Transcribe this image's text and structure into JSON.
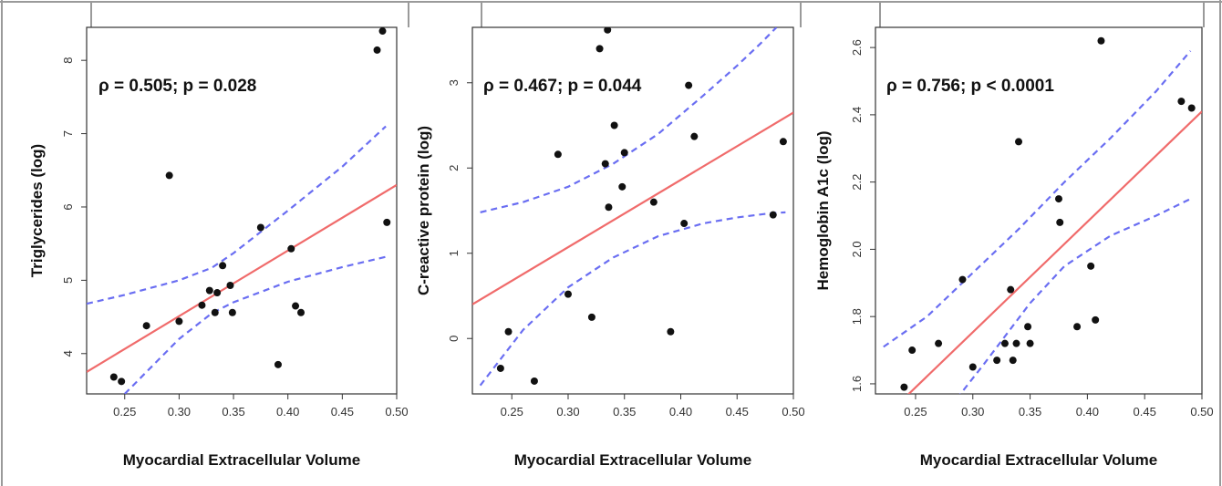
{
  "colors": {
    "fit_line": "#f06b6b",
    "confidence_band": "#6a6ef2",
    "points": "#111111",
    "frame": "#333333",
    "border": "#9a9a9a"
  },
  "chart_data": [
    {
      "type": "scatter",
      "xlabel": "Myocardial Extracellular Volume",
      "ylabel": "Triglycerides (log)",
      "annotation": "ρ = 0.505; p = 0.028",
      "xlim": [
        0.215,
        0.5
      ],
      "ylim": [
        3.45,
        8.45
      ],
      "xticks": [
        0.25,
        0.3,
        0.35,
        0.4,
        0.45,
        0.5
      ],
      "xtick_labels": [
        "0.25",
        "0.30",
        "0.35",
        "0.40",
        "0.45",
        "0.50"
      ],
      "yticks": [
        4,
        5,
        6,
        7,
        8
      ],
      "ytick_labels": [
        "4",
        "5",
        "6",
        "7",
        "8"
      ],
      "points": [
        {
          "x": 0.24,
          "y": 3.68
        },
        {
          "x": 0.247,
          "y": 3.62
        },
        {
          "x": 0.27,
          "y": 4.38
        },
        {
          "x": 0.291,
          "y": 6.43
        },
        {
          "x": 0.3,
          "y": 4.44
        },
        {
          "x": 0.321,
          "y": 4.66
        },
        {
          "x": 0.328,
          "y": 4.86
        },
        {
          "x": 0.333,
          "y": 4.56
        },
        {
          "x": 0.335,
          "y": 4.83
        },
        {
          "x": 0.34,
          "y": 5.2
        },
        {
          "x": 0.347,
          "y": 4.93
        },
        {
          "x": 0.349,
          "y": 4.56
        },
        {
          "x": 0.375,
          "y": 5.72
        },
        {
          "x": 0.391,
          "y": 3.85
        },
        {
          "x": 0.403,
          "y": 5.43
        },
        {
          "x": 0.407,
          "y": 4.65
        },
        {
          "x": 0.412,
          "y": 4.56
        },
        {
          "x": 0.482,
          "y": 8.14
        },
        {
          "x": 0.487,
          "y": 8.4
        },
        {
          "x": 0.491,
          "y": 5.79
        }
      ],
      "fit": {
        "x": [
          0.215,
          0.5
        ],
        "y": [
          3.75,
          6.3
        ]
      },
      "ci_upper": {
        "x": [
          0.215,
          0.25,
          0.3,
          0.33,
          0.35,
          0.4,
          0.45,
          0.49
        ],
        "y": [
          4.68,
          4.8,
          5.0,
          5.17,
          5.37,
          5.95,
          6.55,
          7.1
        ]
      },
      "ci_lower": {
        "x": [
          0.25,
          0.3,
          0.33,
          0.35,
          0.4,
          0.45,
          0.49
        ],
        "y": [
          3.45,
          4.2,
          4.55,
          4.7,
          4.98,
          5.18,
          5.32
        ]
      }
    },
    {
      "type": "scatter",
      "xlabel": "Myocardial Extracellular Volume",
      "ylabel": "C-reactive protein (log)",
      "annotation": "ρ = 0.467; p = 0.044",
      "xlim": [
        0.215,
        0.5
      ],
      "ylim": [
        -0.65,
        3.65
      ],
      "xticks": [
        0.25,
        0.3,
        0.35,
        0.4,
        0.45,
        0.5
      ],
      "xtick_labels": [
        "0.25",
        "0.30",
        "0.35",
        "0.40",
        "0.45",
        "0.50"
      ],
      "yticks": [
        0,
        1,
        2,
        3
      ],
      "ytick_labels": [
        "0",
        "1",
        "2",
        "3"
      ],
      "points": [
        {
          "x": 0.24,
          "y": -0.35
        },
        {
          "x": 0.247,
          "y": 0.08
        },
        {
          "x": 0.27,
          "y": -0.5
        },
        {
          "x": 0.291,
          "y": 2.16
        },
        {
          "x": 0.3,
          "y": 0.52
        },
        {
          "x": 0.321,
          "y": 0.25
        },
        {
          "x": 0.328,
          "y": 3.4
        },
        {
          "x": 0.333,
          "y": 2.05
        },
        {
          "x": 0.335,
          "y": 3.62
        },
        {
          "x": 0.336,
          "y": 1.54
        },
        {
          "x": 0.341,
          "y": 2.5
        },
        {
          "x": 0.348,
          "y": 1.78
        },
        {
          "x": 0.35,
          "y": 2.18
        },
        {
          "x": 0.376,
          "y": 1.6
        },
        {
          "x": 0.391,
          "y": 0.08
        },
        {
          "x": 0.403,
          "y": 1.35
        },
        {
          "x": 0.407,
          "y": 2.97
        },
        {
          "x": 0.412,
          "y": 2.37
        },
        {
          "x": 0.482,
          "y": 1.45
        },
        {
          "x": 0.491,
          "y": 2.31
        }
      ],
      "fit": {
        "x": [
          0.215,
          0.5
        ],
        "y": [
          0.4,
          2.65
        ]
      },
      "ci_upper": {
        "x": [
          0.222,
          0.26,
          0.3,
          0.34,
          0.38,
          0.42,
          0.45,
          0.47,
          0.485
        ],
        "y": [
          1.48,
          1.6,
          1.78,
          2.05,
          2.4,
          2.85,
          3.2,
          3.45,
          3.65
        ]
      },
      "ci_lower": {
        "x": [
          0.222,
          0.26,
          0.3,
          0.34,
          0.38,
          0.42,
          0.45,
          0.48,
          0.493
        ],
        "y": [
          -0.55,
          0.1,
          0.6,
          0.95,
          1.2,
          1.35,
          1.42,
          1.47,
          1.48
        ]
      }
    },
    {
      "type": "scatter",
      "xlabel": "Myocardial Extracellular Volume",
      "ylabel": "Hemoglobin A1c (log)",
      "annotation": "ρ = 0.756; p < 0.0001",
      "xlim": [
        0.215,
        0.5
      ],
      "ylim": [
        1.57,
        2.66
      ],
      "xticks": [
        0.25,
        0.3,
        0.35,
        0.4,
        0.45,
        0.5
      ],
      "xtick_labels": [
        "0.25",
        "0.30",
        "0.35",
        "0.40",
        "0.45",
        "0.50"
      ],
      "yticks": [
        1.6,
        1.8,
        2.0,
        2.2,
        2.4,
        2.6
      ],
      "ytick_labels": [
        "1.6",
        "1.8",
        "2.0",
        "2.2",
        "2.4",
        "2.6"
      ],
      "points": [
        {
          "x": 0.24,
          "y": 1.59
        },
        {
          "x": 0.247,
          "y": 1.7
        },
        {
          "x": 0.27,
          "y": 1.72
        },
        {
          "x": 0.291,
          "y": 1.91
        },
        {
          "x": 0.3,
          "y": 1.65
        },
        {
          "x": 0.321,
          "y": 1.67
        },
        {
          "x": 0.328,
          "y": 1.72
        },
        {
          "x": 0.333,
          "y": 1.88
        },
        {
          "x": 0.335,
          "y": 1.67
        },
        {
          "x": 0.338,
          "y": 1.72
        },
        {
          "x": 0.34,
          "y": 2.32
        },
        {
          "x": 0.348,
          "y": 1.77
        },
        {
          "x": 0.35,
          "y": 1.72
        },
        {
          "x": 0.375,
          "y": 2.15
        },
        {
          "x": 0.376,
          "y": 2.08
        },
        {
          "x": 0.391,
          "y": 1.77
        },
        {
          "x": 0.403,
          "y": 1.95
        },
        {
          "x": 0.407,
          "y": 1.79
        },
        {
          "x": 0.412,
          "y": 2.62
        },
        {
          "x": 0.418,
          "y": 2.68
        },
        {
          "x": 0.482,
          "y": 2.44
        },
        {
          "x": 0.491,
          "y": 2.42
        }
      ],
      "fit": {
        "x": [
          0.238,
          0.5
        ],
        "y": [
          1.55,
          2.41
        ]
      },
      "ci_upper": {
        "x": [
          0.222,
          0.26,
          0.3,
          0.34,
          0.38,
          0.42,
          0.46,
          0.49
        ],
        "y": [
          1.71,
          1.8,
          1.93,
          2.06,
          2.2,
          2.33,
          2.47,
          2.59
        ]
      },
      "ci_lower": {
        "x": [
          0.28,
          0.31,
          0.35,
          0.38,
          0.42,
          0.46,
          0.49
        ],
        "y": [
          1.53,
          1.66,
          1.84,
          1.95,
          2.04,
          2.1,
          2.15
        ]
      }
    }
  ]
}
